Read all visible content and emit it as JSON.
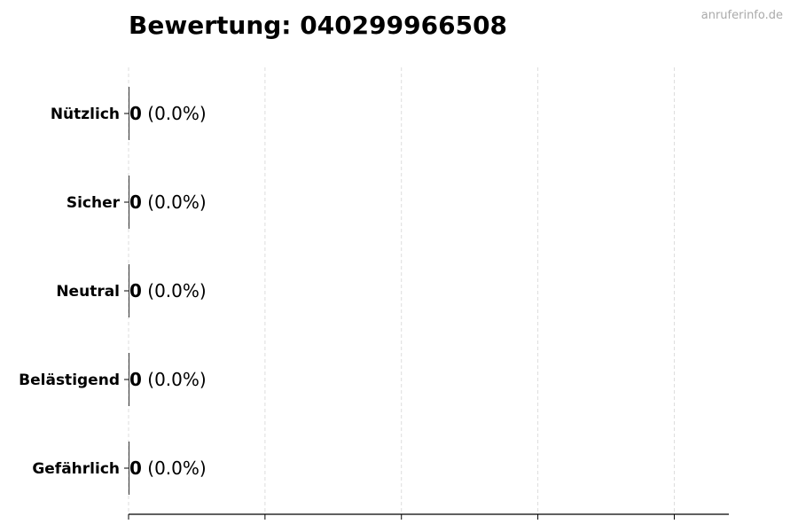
{
  "title": "Bewertung: 040299966508",
  "watermark": "anruferinfo.de",
  "chart_data": {
    "type": "bar",
    "orientation": "horizontal",
    "title": "Bewertung: 040299966508",
    "categories": [
      "Nützlich",
      "Sicher",
      "Neutral",
      "Belästigend",
      "Gefährlich"
    ],
    "values": [
      0,
      0,
      0,
      0,
      0
    ],
    "data_labels": [
      {
        "count": "0",
        "percent": "(0.0%)"
      },
      {
        "count": "0",
        "percent": "(0.0%)"
      },
      {
        "count": "0",
        "percent": "(0.0%)"
      },
      {
        "count": "0",
        "percent": "(0.0%)"
      },
      {
        "count": "0",
        "percent": "(0.0%)"
      }
    ],
    "xlabel": "",
    "ylabel": "",
    "xlim": [
      0,
      4.4
    ],
    "xticks": [
      0,
      1,
      2,
      3,
      4
    ],
    "xtick_labels_shown": false,
    "grid": "vertical dashed",
    "bar_color": "#333333",
    "grid_color": "#dddddd"
  }
}
